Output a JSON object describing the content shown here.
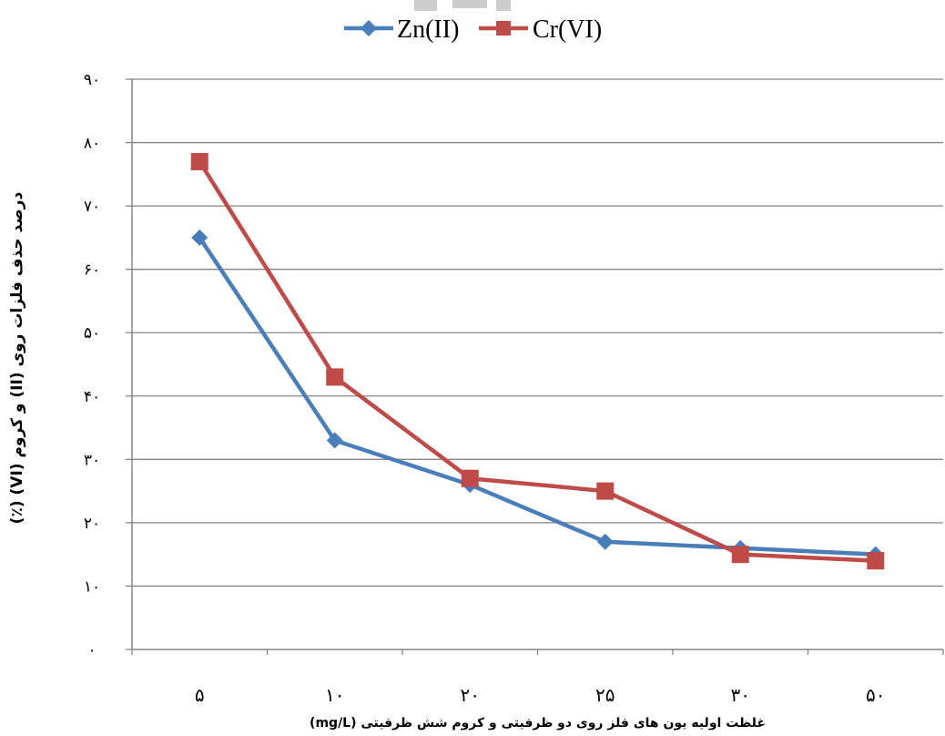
{
  "chart_data": {
    "type": "line",
    "categories": [
      "۵",
      "۱۰",
      "۲۰",
      "۲۵",
      "۳۰",
      "۵۰"
    ],
    "series": [
      {
        "name": "Zn(II)",
        "values": [
          65,
          33,
          26,
          17,
          16,
          15
        ],
        "color": "#4a7ebb",
        "marker": "diamond"
      },
      {
        "name": "Cr(VI)",
        "values": [
          77,
          43,
          27,
          25,
          15,
          14
        ],
        "color": "#be4b48",
        "marker": "square"
      }
    ],
    "y_tick_labels": [
      "۰",
      "۱۰",
      "۲۰",
      "۳۰",
      "۴۰",
      "۵۰",
      "۶۰",
      "۷۰",
      "۸۰",
      "۹۰"
    ],
    "ylim": [
      0,
      90
    ],
    "xlabel": "غلظت اولیه یون های فلز روی دو ظرفیتی و کروم شش ظرفیتی (mg/L)",
    "ylabel": "درصد حذف فلزات روی (II) و کروم (VI) (٪)",
    "grid": true,
    "legend": "top-center"
  }
}
